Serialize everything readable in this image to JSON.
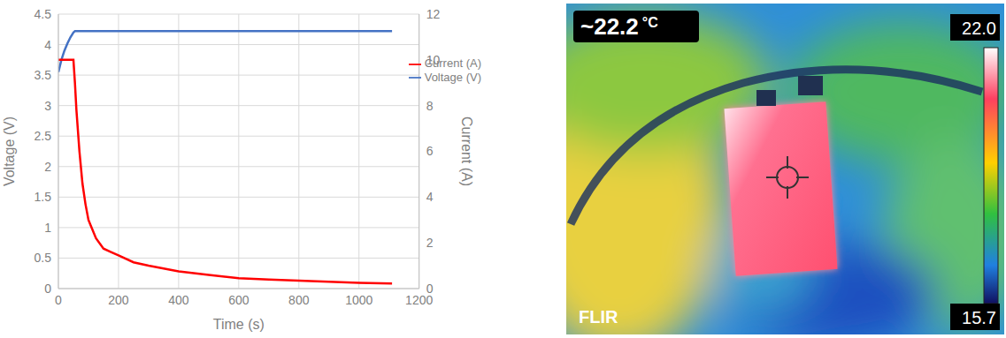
{
  "chart_data": {
    "type": "line",
    "xlabel": "Time (s)",
    "ylabel": "Voltage (V)",
    "y2label": "Current (A)",
    "x": [
      0,
      10,
      20,
      30,
      40,
      50,
      55,
      60,
      70,
      80,
      90,
      100,
      125,
      150,
      175,
      200,
      250,
      300,
      400,
      500,
      600,
      700,
      800,
      900,
      1000,
      1110
    ],
    "series": [
      {
        "name": "Voltage (V)",
        "color": "#4472c4",
        "axis": "y",
        "values": [
          3.55,
          3.75,
          3.9,
          4.02,
          4.12,
          4.2,
          4.22,
          4.22,
          4.22,
          4.22,
          4.22,
          4.22,
          4.22,
          4.22,
          4.22,
          4.22,
          4.22,
          4.22,
          4.22,
          4.22,
          4.22,
          4.22,
          4.22,
          4.22,
          4.22,
          4.22
        ]
      },
      {
        "name": "Current (A)",
        "color": "#ff0000",
        "axis": "y2",
        "values": [
          10,
          10,
          10,
          10,
          10,
          10,
          9,
          7.8,
          6,
          4.6,
          3.7,
          3.0,
          2.2,
          1.75,
          1.6,
          1.45,
          1.15,
          1.0,
          0.75,
          0.6,
          0.45,
          0.4,
          0.35,
          0.3,
          0.25,
          0.22
        ]
      }
    ],
    "xlim": [
      0,
      1200
    ],
    "xticks": [
      0,
      200,
      400,
      600,
      800,
      1000,
      1200
    ],
    "ylim": [
      0,
      4.5
    ],
    "yticks": [
      0,
      0.5,
      1,
      1.5,
      2,
      2.5,
      3,
      3.5,
      4,
      4.5
    ],
    "y2lim": [
      0,
      12
    ],
    "y2ticks": [
      0,
      2,
      4,
      6,
      8,
      10,
      12
    ],
    "grid": true,
    "legend": "right"
  },
  "thermal_image": {
    "reading": "~22.2",
    "unit": "°C",
    "scale_max": "22.0",
    "scale_min": "15.7",
    "brand": "FLIR"
  }
}
